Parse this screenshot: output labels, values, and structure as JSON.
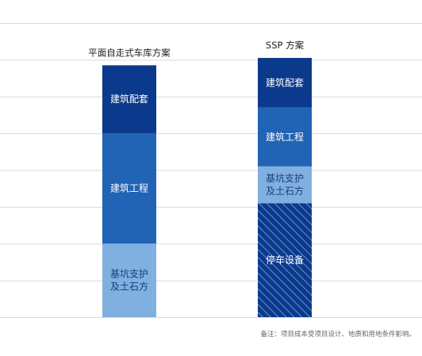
{
  "chart_data": {
    "type": "bar",
    "stacked": true,
    "categories": [
      "平面自走式车库方案",
      "SSP 方案"
    ],
    "stacks": [
      {
        "category": "平面自走式车库方案",
        "segments": [
          {
            "label": [
              "基坑支护",
              "及土石方"
            ],
            "value": 2.0,
            "color": "#7fb0e0",
            "pattern": "solid",
            "text_color": "#1a3d7a"
          },
          {
            "label": [
              "建筑工程"
            ],
            "value": 3.0,
            "color": "#2163b4",
            "pattern": "solid",
            "text_color": "#ffffff"
          },
          {
            "label": [
              "建筑配套"
            ],
            "value": 1.85,
            "color": "#0b3a8c",
            "pattern": "solid",
            "text_color": "#ffffff"
          }
        ]
      },
      {
        "category": "SSP 方案",
        "segments": [
          {
            "label": [
              "停车设备"
            ],
            "value": 3.1,
            "color": "#0b3a8c",
            "pattern": "hatch",
            "text_color": "#ffffff"
          },
          {
            "label": [
              "基坑支护",
              "及土石方"
            ],
            "value": 1.0,
            "color": "#7fb0e0",
            "pattern": "solid",
            "text_color": "#1a3d7a"
          },
          {
            "label": [
              "建筑工程"
            ],
            "value": 1.6,
            "color": "#2163b4",
            "pattern": "solid",
            "text_color": "#ffffff"
          },
          {
            "label": [
              "建筑配套"
            ],
            "value": 1.35,
            "color": "#0b3a8c",
            "pattern": "solid",
            "text_color": "#ffffff"
          }
        ]
      }
    ],
    "ylim": [
      0,
      8.5
    ],
    "grid_values": [
      0,
      1,
      2,
      3,
      4,
      5,
      6,
      7,
      8
    ],
    "grid": true,
    "title": "",
    "xlabel": "",
    "ylabel": ""
  },
  "footnote": "备注：项目成本受项目设计、地质和用地条件影响。"
}
